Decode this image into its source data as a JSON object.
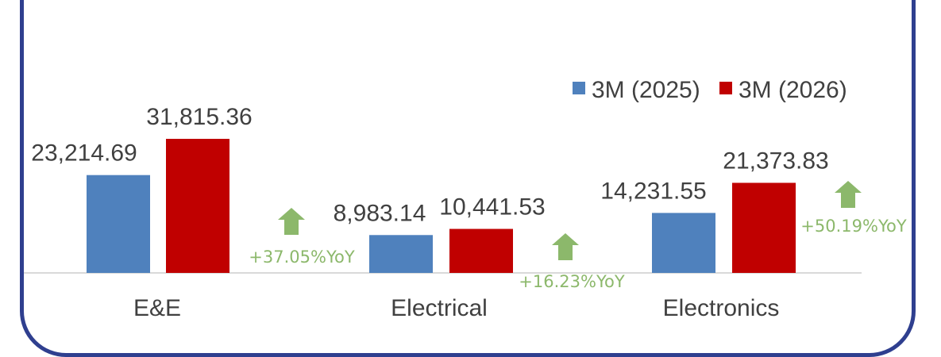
{
  "chart_data": {
    "type": "bar",
    "categories": [
      "E&E",
      "Electrical",
      "Electronics"
    ],
    "series": [
      {
        "name": "3M (2025)",
        "color": "#4f81bd",
        "values": [
          23214.69,
          8983.14,
          14231.55
        ],
        "labels": [
          "23,214.69",
          "8,983.14",
          "14,231.55"
        ]
      },
      {
        "name": "3M (2026)",
        "color": "#c00000",
        "values": [
          31815.36,
          10441.53,
          21373.83
        ],
        "labels": [
          "31,815.36",
          "10,441.53",
          "21,373.83"
        ]
      }
    ],
    "annotations": [
      "+37.05%YoY",
      "+16.23%YoY",
      "+50.19%YoY"
    ],
    "annotation_color": "#8cb86b",
    "legend_position": "top-right",
    "ylim": [
      0,
      31815.36
    ],
    "grid": false
  }
}
